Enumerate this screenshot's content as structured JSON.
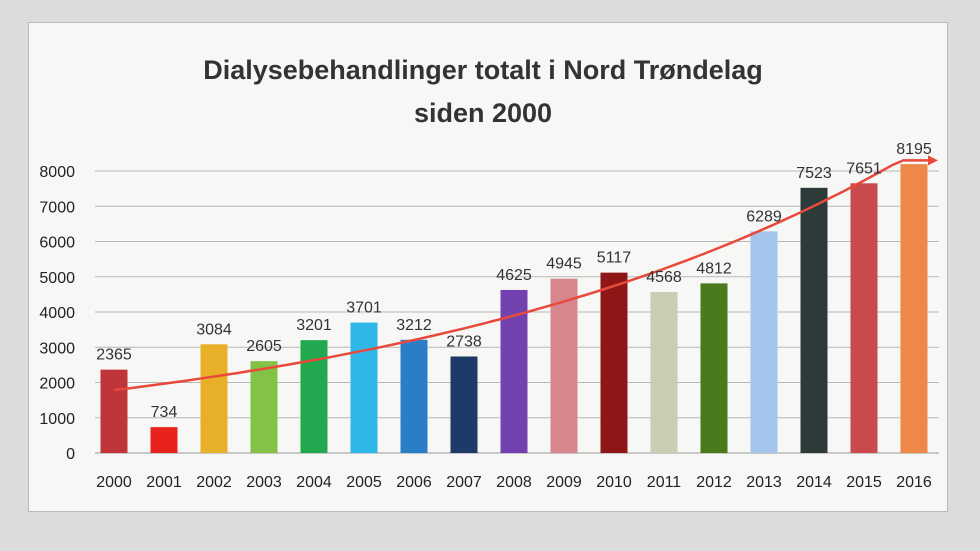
{
  "chart_data": {
    "type": "bar",
    "title": "Dialysebehandlinger totalt i Nord Trøndelag",
    "subtitle": "siden 2000",
    "xlabel": "",
    "ylabel": "",
    "ylim": [
      0,
      8000
    ],
    "yticks": [
      0,
      1000,
      2000,
      3000,
      4000,
      5000,
      6000,
      7000,
      8000
    ],
    "grid": true,
    "legend": "none",
    "trendline": {
      "type": "exponential",
      "color": "#e8493a",
      "arrow": true
    },
    "categories": [
      "2000",
      "2001",
      "2002",
      "2003",
      "2004",
      "2005",
      "2006",
      "2007",
      "2008",
      "2009",
      "2010",
      "2011",
      "2012",
      "2013",
      "2014",
      "2015",
      "2016"
    ],
    "values": [
      2365,
      734,
      3084,
      2605,
      3201,
      3701,
      3212,
      2738,
      4625,
      4945,
      5117,
      4568,
      4812,
      6289,
      7523,
      7651,
      8195
    ],
    "value_labels": [
      "2365",
      "734",
      "3084",
      "2605",
      "3201",
      "3701",
      "3212",
      "2738",
      "4625",
      "4945",
      "5117",
      "4568",
      "4812",
      "6289",
      "7523",
      "7651",
      "8195"
    ],
    "colors": [
      "#c0353a",
      "#e8231e",
      "#e8b028",
      "#82c246",
      "#22a84e",
      "#2eb8e8",
      "#2a7ec8",
      "#1e3a66",
      "#7442b0",
      "#d6868c",
      "#8e1616",
      "#c8cdb4",
      "#4a7a1c",
      "#a4c6ec",
      "#2c3a3a",
      "#c84a4a",
      "#ee8848"
    ]
  }
}
